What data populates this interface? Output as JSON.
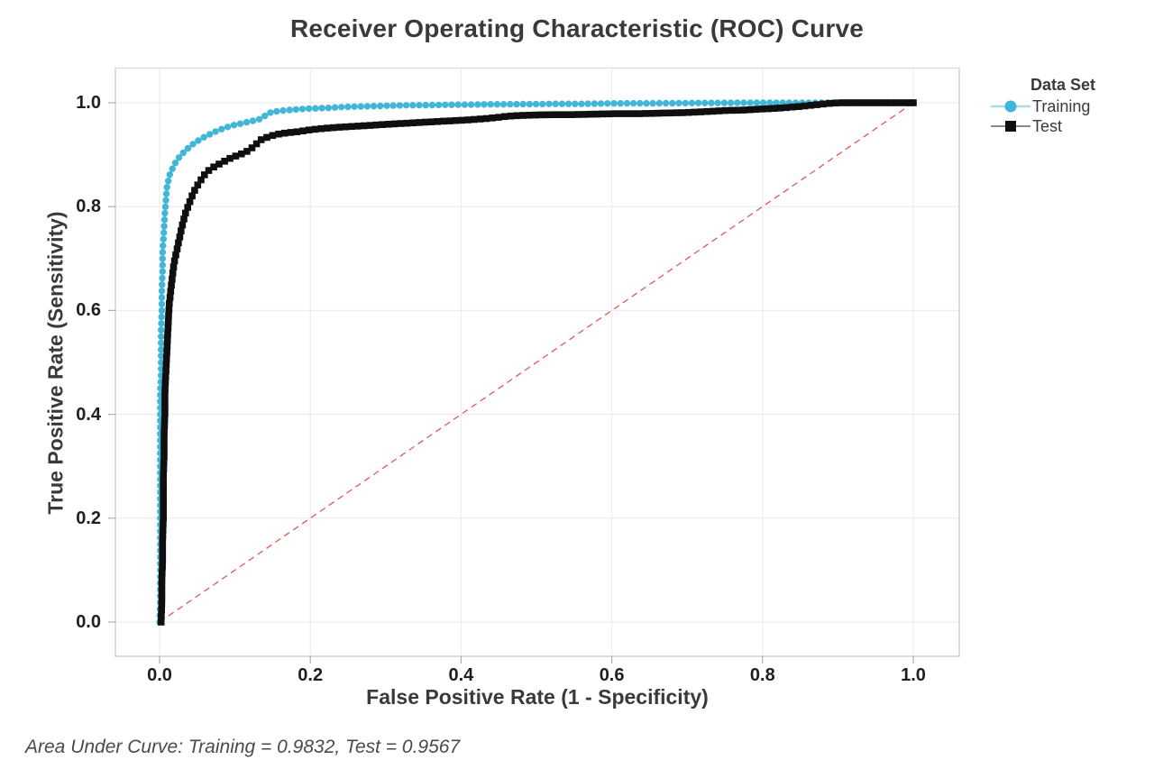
{
  "footer": {
    "text": "Area Under Curve: Training = 0.9832, Test = 0.9567"
  },
  "colors": {
    "background": "#ffffff",
    "plot_border": "#c5c5c5",
    "gridline": "#eaeaea",
    "tick_mark": "#adadad",
    "title_text": "#3a3a3a",
    "tick_text": "#1f1f1f",
    "footer_text": "#4a4a4a"
  },
  "chart_data": {
    "type": "scatter",
    "title": "Receiver Operating Characteristic (ROC) Curve",
    "xlabel": "False Positive Rate (1 - Specificity)",
    "ylabel": "True Positive Rate (Sensitivity)",
    "legend_title": "Data Set",
    "legend_position": "right",
    "grid": true,
    "xlim": [
      0,
      1
    ],
    "ylim": [
      0,
      1
    ],
    "xticks": [
      "0.0",
      "0.2",
      "0.4",
      "0.6",
      "0.8",
      "1.0"
    ],
    "yticks": [
      "0.0",
      "0.2",
      "0.4",
      "0.6",
      "0.8",
      "1.0"
    ],
    "reference_line": {
      "name": "chance-diagonal",
      "from": [
        0,
        0
      ],
      "to": [
        1,
        1
      ],
      "color": "#e35757",
      "style": "dashed"
    },
    "series": [
      {
        "name": "Training",
        "marker": "circle",
        "color": "#41b6d8",
        "line_color": "#a9dcec",
        "auc": 0.9832,
        "points": [
          [
            0.0,
            0.0
          ],
          [
            0.001,
            0.04
          ],
          [
            0.001,
            0.09
          ],
          [
            0.001,
            0.14
          ],
          [
            0.001,
            0.19
          ],
          [
            0.001,
            0.24
          ],
          [
            0.001,
            0.29
          ],
          [
            0.001,
            0.34
          ],
          [
            0.001,
            0.39
          ],
          [
            0.001,
            0.44
          ],
          [
            0.002,
            0.48
          ],
          [
            0.002,
            0.52
          ],
          [
            0.002,
            0.56
          ],
          [
            0.003,
            0.6
          ],
          [
            0.003,
            0.64
          ],
          [
            0.004,
            0.675
          ],
          [
            0.004,
            0.71
          ],
          [
            0.005,
            0.735
          ],
          [
            0.006,
            0.76
          ],
          [
            0.007,
            0.785
          ],
          [
            0.008,
            0.805
          ],
          [
            0.009,
            0.825
          ],
          [
            0.01,
            0.84
          ],
          [
            0.012,
            0.853
          ],
          [
            0.014,
            0.864
          ],
          [
            0.017,
            0.873
          ],
          [
            0.02,
            0.882
          ],
          [
            0.024,
            0.891
          ],
          [
            0.028,
            0.899
          ],
          [
            0.033,
            0.906
          ],
          [
            0.038,
            0.913
          ],
          [
            0.044,
            0.92
          ],
          [
            0.051,
            0.927
          ],
          [
            0.058,
            0.933
          ],
          [
            0.066,
            0.939
          ],
          [
            0.075,
            0.945
          ],
          [
            0.085,
            0.951
          ],
          [
            0.096,
            0.956
          ],
          [
            0.108,
            0.96
          ],
          [
            0.117,
            0.963
          ],
          [
            0.132,
            0.968
          ],
          [
            0.14,
            0.975
          ],
          [
            0.148,
            0.982
          ],
          [
            0.163,
            0.985
          ],
          [
            0.18,
            0.987
          ],
          [
            0.2,
            0.989
          ],
          [
            0.222,
            0.99
          ],
          [
            0.246,
            0.992
          ],
          [
            0.27,
            0.993
          ],
          [
            0.295,
            0.994
          ],
          [
            0.32,
            0.995
          ],
          [
            0.35,
            0.9955
          ],
          [
            0.38,
            0.996
          ],
          [
            0.41,
            0.9965
          ],
          [
            0.44,
            0.997
          ],
          [
            0.47,
            0.9972
          ],
          [
            0.5,
            0.9975
          ],
          [
            0.53,
            0.998
          ],
          [
            0.56,
            0.998
          ],
          [
            0.59,
            0.9985
          ],
          [
            0.62,
            0.999
          ],
          [
            0.65,
            0.999
          ],
          [
            0.68,
            0.9992
          ],
          [
            0.71,
            0.9995
          ],
          [
            0.74,
            0.9997
          ],
          [
            0.77,
            1.0
          ],
          [
            0.8,
            1.0
          ],
          [
            0.83,
            1.0
          ],
          [
            0.86,
            1.0
          ],
          [
            0.89,
            1.0
          ],
          [
            0.92,
            1.0
          ],
          [
            0.95,
            1.0
          ],
          [
            0.975,
            1.0
          ],
          [
            1.0,
            1.0
          ]
        ]
      },
      {
        "name": "Test",
        "marker": "square",
        "color": "#0f0f0f",
        "line_color": "#8c8c8c",
        "auc": 0.9567,
        "points": [
          [
            0.002,
            0.0
          ],
          [
            0.003,
            0.04
          ],
          [
            0.003,
            0.08
          ],
          [
            0.004,
            0.12
          ],
          [
            0.004,
            0.16
          ],
          [
            0.005,
            0.2
          ],
          [
            0.005,
            0.24
          ],
          [
            0.005,
            0.28
          ],
          [
            0.006,
            0.32
          ],
          [
            0.006,
            0.36
          ],
          [
            0.007,
            0.4
          ],
          [
            0.007,
            0.44
          ],
          [
            0.008,
            0.47
          ],
          [
            0.009,
            0.5
          ],
          [
            0.01,
            0.53
          ],
          [
            0.011,
            0.56
          ],
          [
            0.012,
            0.59
          ],
          [
            0.013,
            0.615
          ],
          [
            0.015,
            0.64
          ],
          [
            0.017,
            0.665
          ],
          [
            0.019,
            0.69
          ],
          [
            0.022,
            0.71
          ],
          [
            0.025,
            0.73
          ],
          [
            0.028,
            0.75
          ],
          [
            0.031,
            0.77
          ],
          [
            0.035,
            0.79
          ],
          [
            0.039,
            0.805
          ],
          [
            0.043,
            0.82
          ],
          [
            0.047,
            0.833
          ],
          [
            0.052,
            0.845
          ],
          [
            0.057,
            0.856
          ],
          [
            0.062,
            0.866
          ],
          [
            0.068,
            0.873
          ],
          [
            0.075,
            0.879
          ],
          [
            0.083,
            0.885
          ],
          [
            0.092,
            0.892
          ],
          [
            0.102,
            0.898
          ],
          [
            0.113,
            0.904
          ],
          [
            0.12,
            0.91
          ],
          [
            0.128,
            0.92
          ],
          [
            0.135,
            0.929
          ],
          [
            0.145,
            0.935
          ],
          [
            0.155,
            0.939
          ],
          [
            0.168,
            0.942
          ],
          [
            0.182,
            0.944
          ],
          [
            0.2,
            0.948
          ],
          [
            0.22,
            0.951
          ],
          [
            0.24,
            0.953
          ],
          [
            0.262,
            0.955
          ],
          [
            0.285,
            0.957
          ],
          [
            0.308,
            0.959
          ],
          [
            0.332,
            0.961
          ],
          [
            0.357,
            0.963
          ],
          [
            0.383,
            0.965
          ],
          [
            0.41,
            0.967
          ],
          [
            0.437,
            0.97
          ],
          [
            0.455,
            0.973
          ],
          [
            0.47,
            0.975
          ],
          [
            0.49,
            0.976
          ],
          [
            0.515,
            0.977
          ],
          [
            0.545,
            0.977
          ],
          [
            0.575,
            0.978
          ],
          [
            0.605,
            0.979
          ],
          [
            0.635,
            0.979
          ],
          [
            0.665,
            0.98
          ],
          [
            0.695,
            0.981
          ],
          [
            0.725,
            0.983
          ],
          [
            0.75,
            0.985
          ],
          [
            0.775,
            0.986
          ],
          [
            0.8,
            0.988
          ],
          [
            0.825,
            0.99
          ],
          [
            0.85,
            0.993
          ],
          [
            0.87,
            0.996
          ],
          [
            0.89,
            0.999
          ],
          [
            0.905,
            1.0
          ],
          [
            0.93,
            1.0
          ],
          [
            0.955,
            1.0
          ],
          [
            0.98,
            1.0
          ],
          [
            1.0,
            1.0
          ]
        ]
      }
    ]
  }
}
